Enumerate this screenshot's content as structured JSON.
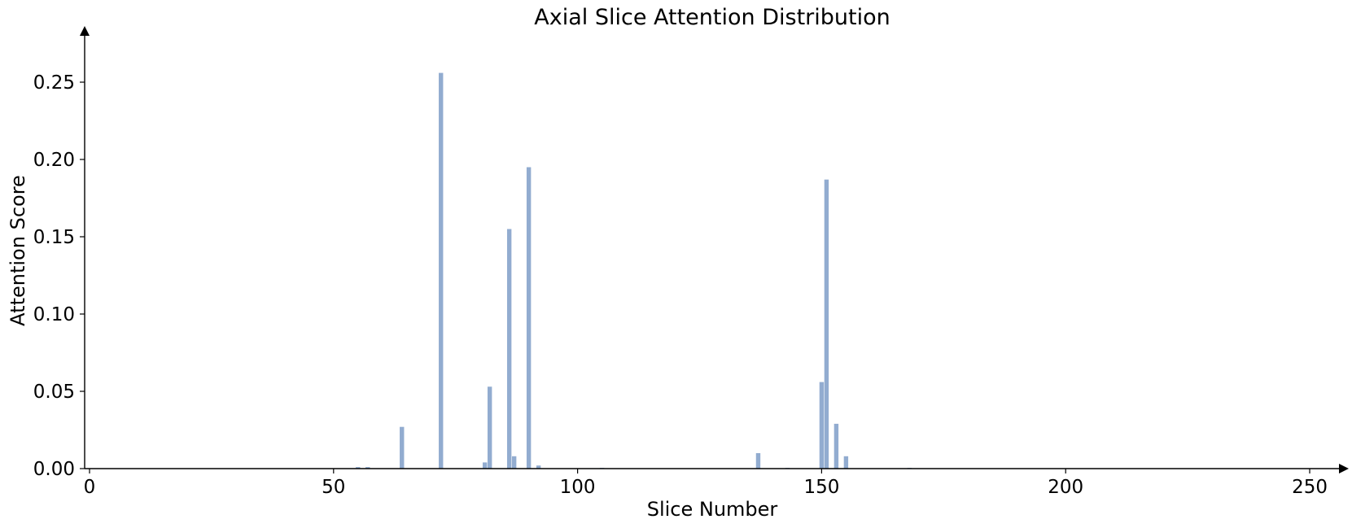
{
  "chart_data": {
    "type": "bar",
    "title": "Axial Slice Attention Distribution",
    "xlabel": "Slice Number",
    "ylabel": "Attention Score",
    "xlim": [
      -1,
      256
    ],
    "ylim": [
      0,
      0.28
    ],
    "xticks": [
      0,
      50,
      100,
      150,
      200,
      250
    ],
    "xtick_labels": [
      "0",
      "50",
      "100",
      "150",
      "200",
      "250"
    ],
    "yticks": [
      0,
      0.05,
      0.1,
      0.15,
      0.2,
      0.25
    ],
    "ytick_labels": [
      "0.00",
      "0.05",
      "0.10",
      "0.15",
      "0.20",
      "0.25"
    ],
    "grid": false,
    "bar_color": "#92acd0",
    "x": [
      55,
      57,
      64,
      72,
      81,
      82,
      86,
      87,
      90,
      92,
      105,
      137,
      143,
      150,
      151,
      153,
      155,
      168
    ],
    "values": [
      0.001,
      0.001,
      0.027,
      0.256,
      0.004,
      0.053,
      0.155,
      0.008,
      0.195,
      0.002,
      0.0005,
      0.01,
      0.0005,
      0.056,
      0.187,
      0.029,
      0.008,
      0.0005
    ]
  }
}
